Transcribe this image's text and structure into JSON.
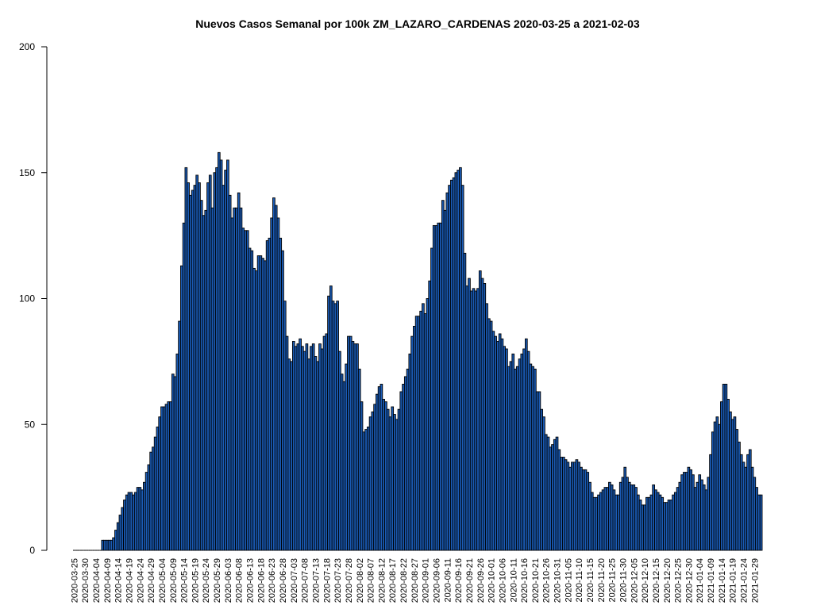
{
  "chart_data": {
    "type": "bar",
    "title": "Nuevos Casos Semanal por 100k ZM_LAZARO_CARDENAS 2020-03-25 a 2021-02-03",
    "xlabel": "",
    "ylabel": "",
    "ylim": [
      0,
      200
    ],
    "y_ticks": [
      0,
      50,
      100,
      150,
      200
    ],
    "start_date": "2020-03-25",
    "end_date": "2021-02-03",
    "label_every_days": 5,
    "colors": {
      "bar_fill": "#1a5bb5",
      "bar_stroke": "#000000"
    },
    "values": [
      0,
      0,
      0,
      0,
      0,
      0,
      0,
      0,
      0,
      0,
      0,
      0,
      0,
      4,
      4,
      4,
      4,
      4,
      5,
      8,
      11,
      14,
      17,
      20,
      22,
      23,
      23,
      22,
      23,
      25,
      25,
      24,
      27,
      31,
      34,
      39,
      41,
      45,
      49,
      53,
      57,
      57,
      58,
      59,
      59,
      70,
      69,
      78,
      91,
      113,
      130,
      152,
      146,
      141,
      143,
      145,
      149,
      146,
      139,
      133,
      135,
      146,
      149,
      136,
      150,
      152,
      158,
      155,
      145,
      151,
      155,
      141,
      132,
      136,
      136,
      142,
      136,
      128,
      127,
      127,
      120,
      119,
      112,
      111,
      117,
      117,
      116,
      115,
      123,
      124,
      132,
      140,
      137,
      132,
      124,
      119,
      99,
      85,
      76,
      75,
      83,
      81,
      82,
      84,
      81,
      79,
      82,
      76,
      81,
      82,
      77,
      75,
      82,
      80,
      85,
      86,
      101,
      105,
      99,
      98,
      99,
      79,
      70,
      67,
      74,
      85,
      85,
      83,
      82,
      82,
      72,
      59,
      47,
      48,
      49,
      53,
      55,
      58,
      62,
      65,
      66,
      60,
      59,
      56,
      53,
      57,
      54,
      52,
      56,
      63,
      66,
      69,
      72,
      78,
      85,
      89,
      93,
      93,
      95,
      98,
      94,
      100,
      107,
      120,
      129,
      129,
      130,
      130,
      139,
      135,
      142,
      145,
      147,
      148,
      150,
      151,
      152,
      145,
      118,
      105,
      108,
      103,
      104,
      103,
      104,
      111,
      108,
      106,
      98,
      92,
      91,
      87,
      85,
      83,
      86,
      84,
      81,
      80,
      73,
      75,
      78,
      72,
      73,
      76,
      78,
      80,
      84,
      79,
      74,
      73,
      72,
      63,
      63,
      56,
      53,
      46,
      45,
      41,
      42,
      44,
      45,
      40,
      37,
      37,
      36,
      35,
      33,
      35,
      35,
      36,
      35,
      33,
      32,
      32,
      31,
      27,
      23,
      21,
      21,
      22,
      23,
      24,
      25,
      25,
      27,
      26,
      24,
      22,
      22,
      27,
      29,
      33,
      29,
      27,
      26,
      26,
      25,
      22,
      20,
      18,
      18,
      21,
      21,
      22,
      26,
      24,
      23,
      22,
      21,
      19,
      19,
      20,
      20,
      22,
      23,
      25,
      27,
      30,
      31,
      31,
      33,
      32,
      30,
      25,
      27,
      30,
      28,
      26,
      24,
      29,
      38,
      47,
      51,
      53,
      50,
      59,
      66,
      66,
      60,
      55,
      52,
      53,
      48,
      43,
      38,
      35,
      33,
      38,
      40,
      33,
      29,
      25,
      22,
      22
    ]
  }
}
